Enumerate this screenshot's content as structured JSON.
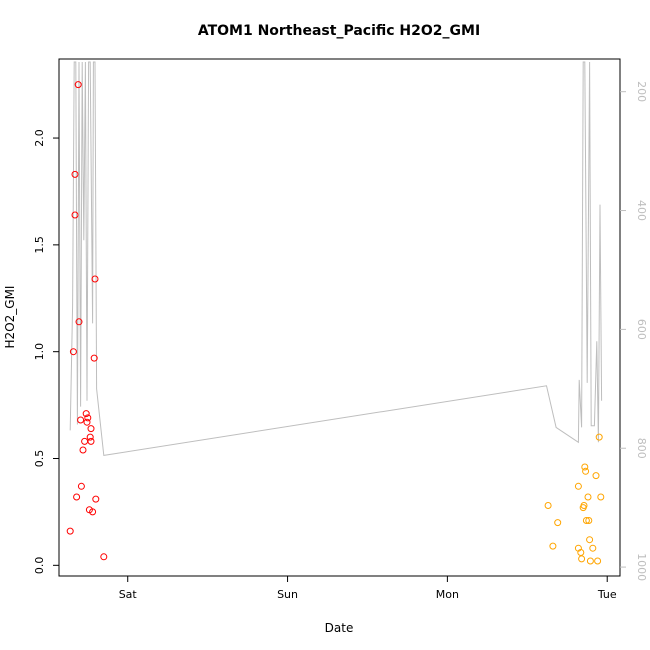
{
  "chart_data": {
    "type": "scatter",
    "title": "ATOM1 Northeast_Pacific H2O2_GMI",
    "xlabel": "Date",
    "ylabel": "H2O2_GMI",
    "x_unit": "days",
    "x_ticks": [
      {
        "label": "Sat",
        "x": 0
      },
      {
        "label": "Sun",
        "x": 1
      },
      {
        "label": "Mon",
        "x": 2
      },
      {
        "label": "Tue",
        "x": 3
      }
    ],
    "xlim": [
      -0.43,
      3.08
    ],
    "ylim": [
      -0.05,
      2.37
    ],
    "y_ticks": [
      0.0,
      0.5,
      1.0,
      1.5,
      2.0
    ],
    "y_tick_labels": [
      "0.0",
      "0.5",
      "1.0",
      "1.5",
      "2.0"
    ],
    "y2_ticks": [
      200,
      400,
      600,
      800,
      1000
    ],
    "y2_tick_labels": [
      "200",
      "400",
      "600",
      "800",
      "1000"
    ],
    "y2lim": [
      1015,
      145
    ],
    "series": [
      {
        "color": "#ff0000",
        "points": [
          [
            -0.36,
            0.16
          ],
          [
            -0.34,
            1.0
          ],
          [
            -0.33,
            1.83
          ],
          [
            -0.33,
            1.64
          ],
          [
            -0.32,
            0.32
          ],
          [
            -0.31,
            2.25
          ],
          [
            -0.305,
            1.14
          ],
          [
            -0.295,
            0.68
          ],
          [
            -0.29,
            0.37
          ],
          [
            -0.28,
            0.54
          ],
          [
            -0.27,
            0.58
          ],
          [
            -0.26,
            0.71
          ],
          [
            -0.255,
            0.67
          ],
          [
            -0.25,
            0.69
          ],
          [
            -0.24,
            0.26
          ],
          [
            -0.235,
            0.6
          ],
          [
            -0.23,
            0.58
          ],
          [
            -0.23,
            0.64
          ],
          [
            -0.22,
            0.25
          ],
          [
            -0.21,
            0.97
          ],
          [
            -0.205,
            1.34
          ],
          [
            -0.2,
            0.31
          ],
          [
            -0.15,
            0.04
          ]
        ]
      },
      {
        "color": "#ffa500",
        "points": [
          [
            2.63,
            0.28
          ],
          [
            2.66,
            0.09
          ],
          [
            2.69,
            0.2
          ],
          [
            2.82,
            0.37
          ],
          [
            2.82,
            0.08
          ],
          [
            2.835,
            0.06
          ],
          [
            2.84,
            0.03
          ],
          [
            2.85,
            0.27
          ],
          [
            2.855,
            0.28
          ],
          [
            2.86,
            0.46
          ],
          [
            2.865,
            0.44
          ],
          [
            2.87,
            0.21
          ],
          [
            2.88,
            0.32
          ],
          [
            2.885,
            0.21
          ],
          [
            2.89,
            0.12
          ],
          [
            2.895,
            0.02
          ],
          [
            2.91,
            0.08
          ],
          [
            2.93,
            0.42
          ],
          [
            2.94,
            0.02
          ],
          [
            2.95,
            0.6
          ],
          [
            2.96,
            0.32
          ]
        ]
      },
      {
        "color": "#bebebe",
        "axis": "right",
        "points": [
          [
            -0.36,
            770
          ],
          [
            -0.345,
            560
          ],
          [
            -0.335,
            150
          ],
          [
            -0.325,
            150
          ],
          [
            -0.315,
            760
          ],
          [
            -0.305,
            150
          ],
          [
            -0.295,
            730
          ],
          [
            -0.285,
            150
          ],
          [
            -0.275,
            450
          ],
          [
            -0.265,
            150
          ],
          [
            -0.255,
            720
          ],
          [
            -0.245,
            150
          ],
          [
            -0.235,
            150
          ],
          [
            -0.22,
            590
          ],
          [
            -0.215,
            150
          ],
          [
            -0.205,
            150
          ],
          [
            -0.195,
            700
          ],
          [
            -0.15,
            812
          ],
          [
            2.62,
            695
          ],
          [
            2.68,
            765
          ],
          [
            2.82,
            790
          ],
          [
            2.825,
            685
          ],
          [
            2.84,
            765
          ],
          [
            2.85,
            150
          ],
          [
            2.86,
            150
          ],
          [
            2.875,
            690
          ],
          [
            2.89,
            150
          ],
          [
            2.9,
            762
          ],
          [
            2.92,
            762
          ],
          [
            2.935,
            620
          ],
          [
            2.945,
            790
          ],
          [
            2.955,
            390
          ],
          [
            2.965,
            720
          ]
        ]
      }
    ]
  }
}
